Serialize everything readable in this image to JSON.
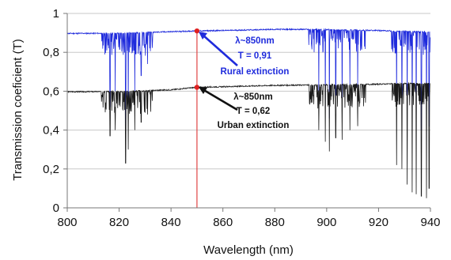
{
  "chart_data": {
    "type": "line",
    "xlabel": "Wavelength (nm)",
    "ylabel": "Transmission coeficient (T)",
    "xlim": [
      800,
      940
    ],
    "ylim": [
      0,
      1
    ],
    "x_ticks": [
      "800",
      "820",
      "840",
      "860",
      "880",
      "900",
      "920",
      "940"
    ],
    "y_ticks": [
      "0",
      "0,2",
      "0,4",
      "0,6",
      "0,8",
      "1"
    ],
    "grid": "horizontal",
    "series": [
      {
        "color": "#1f2bdc",
        "baseline": [
          [
            800,
            0.897
          ],
          [
            820,
            0.898
          ],
          [
            840,
            0.906
          ],
          [
            850,
            0.91
          ],
          [
            860,
            0.912
          ],
          [
            880,
            0.918
          ],
          [
            895,
            0.918
          ],
          [
            920,
            0.912
          ],
          [
            930,
            0.908
          ],
          [
            940,
            0.905
          ]
        ],
        "absorption_bands": [
          [
            813,
            833
          ],
          [
            893,
            915
          ],
          [
            925,
            940
          ]
        ],
        "deep_lines": [
          [
            816.5,
            0.52
          ],
          [
            818.5,
            0.6
          ],
          [
            822.5,
            0.4
          ],
          [
            823.5,
            0.52
          ],
          [
            826,
            0.6
          ],
          [
            828.5,
            0.68
          ],
          [
            831,
            0.74
          ],
          [
            897,
            0.6
          ],
          [
            899.5,
            0.52
          ],
          [
            901,
            0.46
          ],
          [
            903.5,
            0.58
          ],
          [
            906,
            0.54
          ],
          [
            909,
            0.62
          ],
          [
            912,
            0.62
          ],
          [
            927,
            0.56
          ],
          [
            929,
            0.5
          ],
          [
            931,
            0.5
          ],
          [
            933,
            0.48
          ],
          [
            934.5,
            0.38
          ],
          [
            936.5,
            0.4
          ],
          [
            938.5,
            0.38
          ],
          [
            939.5,
            0.42
          ]
        ]
      },
      {
        "color": "#1a1a1a",
        "baseline": [
          [
            800,
            0.597
          ],
          [
            820,
            0.598
          ],
          [
            840,
            0.607
          ],
          [
            850,
            0.62
          ],
          [
            860,
            0.623
          ],
          [
            880,
            0.63
          ],
          [
            895,
            0.632
          ],
          [
            920,
            0.636
          ],
          [
            930,
            0.64
          ],
          [
            940,
            0.64
          ]
        ],
        "absorption_bands": [
          [
            813,
            833
          ],
          [
            893,
            915
          ],
          [
            925,
            940
          ]
        ],
        "deep_lines": [
          [
            816.5,
            0.37
          ],
          [
            818.5,
            0.4
          ],
          [
            822.5,
            0.23
          ],
          [
            823.5,
            0.3
          ],
          [
            826,
            0.4
          ],
          [
            828.5,
            0.44
          ],
          [
            831,
            0.48
          ],
          [
            897,
            0.4
          ],
          [
            899.5,
            0.34
          ],
          [
            901,
            0.29
          ],
          [
            903.5,
            0.36
          ],
          [
            906,
            0.35
          ],
          [
            909,
            0.4
          ],
          [
            912,
            0.42
          ],
          [
            927,
            0.22
          ],
          [
            929,
            0.2
          ],
          [
            931,
            0.12
          ],
          [
            933,
            0.08
          ],
          [
            934.5,
            0.07
          ],
          [
            936.5,
            0.06
          ],
          [
            938.5,
            0.05
          ],
          [
            939.5,
            0.1
          ]
        ]
      }
    ],
    "vertical_marker": {
      "x": 850,
      "color": "#e04444"
    },
    "points": [
      {
        "x": 850,
        "y": 0.91,
        "color": "#e02020"
      },
      {
        "x": 850,
        "y": 0.62,
        "color": "#e02020"
      }
    ],
    "annotations": [
      {
        "lines": [
          "λ~850nm",
          "T = 0,91"
        ],
        "title": "Rural extinction",
        "color": "#1f2bdc"
      },
      {
        "lines": [
          "λ~850nm",
          "T = 0,62"
        ],
        "title": "Urban extinction",
        "color": "#111111"
      }
    ]
  }
}
